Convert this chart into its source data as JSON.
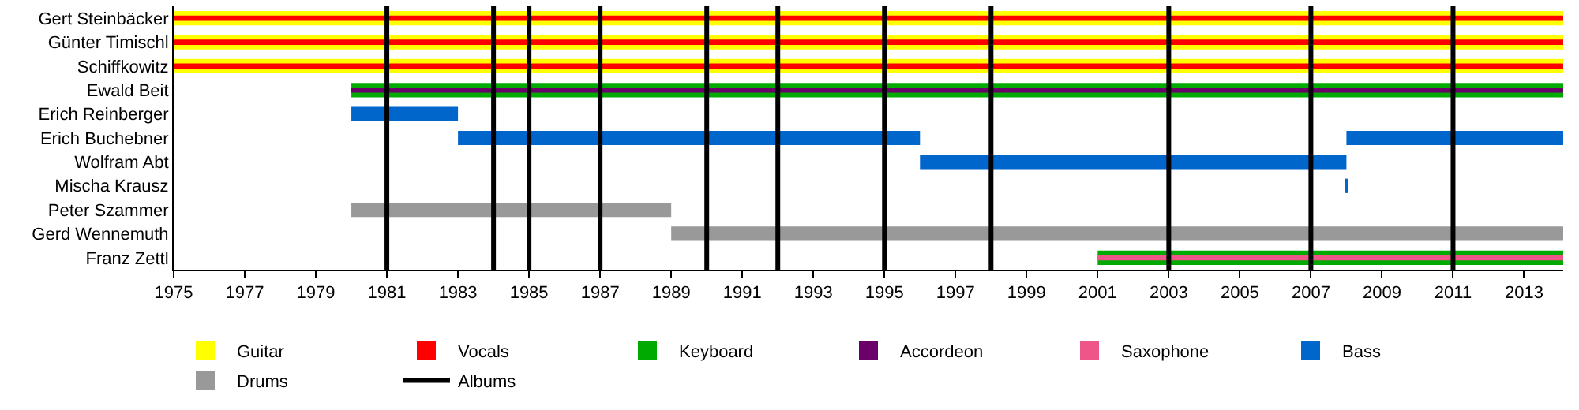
{
  "chart_data": {
    "type": "bar",
    "orientation": "horizontal",
    "legend": "bottom",
    "categories": [
      "Gert Steinbäcker",
      "Günter Timischl",
      "Schiffkowitz",
      "Ewald Beit",
      "Erich Reinberger",
      "Erich Buchebner",
      "Wolfram Abt",
      "Mischa Krausz",
      "Peter Szammer",
      "Gerd Wennemuth",
      "Franz Zettl"
    ],
    "xlim": [
      1975,
      2014.1
    ],
    "xticks": [
      1975,
      1977,
      1979,
      1981,
      1983,
      1985,
      1987,
      1989,
      1991,
      1993,
      1995,
      1997,
      1999,
      2001,
      2003,
      2005,
      2007,
      2009,
      2011,
      2013
    ],
    "series": [
      {
        "name": "Guitar",
        "color": "#ffff00",
        "base": [
          1975,
          1975,
          1975,
          null,
          null,
          null,
          null,
          null,
          null,
          null,
          null
        ],
        "values": [
          39.1,
          39.1,
          39.1,
          null,
          null,
          null,
          null,
          null,
          null,
          null,
          null
        ]
      },
      {
        "name": "Vocals",
        "color": "#ff0000",
        "base": [
          1975,
          1975,
          1975,
          null,
          null,
          null,
          null,
          null,
          null,
          null,
          null
        ],
        "values": [
          39.1,
          39.1,
          39.1,
          null,
          null,
          null,
          null,
          null,
          null,
          null,
          null
        ]
      },
      {
        "name": "Keyboard",
        "color": "#00aa00",
        "base": [
          null,
          null,
          null,
          1980,
          null,
          null,
          null,
          null,
          null,
          null,
          2001
        ],
        "values": [
          null,
          null,
          null,
          34.1,
          null,
          null,
          null,
          null,
          null,
          null,
          13.1
        ]
      },
      {
        "name": "Accordeon",
        "color": "#6a006a",
        "base": [
          null,
          null,
          null,
          1980,
          null,
          null,
          null,
          null,
          null,
          null,
          null
        ],
        "values": [
          null,
          null,
          null,
          34.1,
          null,
          null,
          null,
          null,
          null,
          null,
          null
        ]
      },
      {
        "name": "Saxophone",
        "color": "#ee5588",
        "base": [
          null,
          null,
          null,
          null,
          null,
          null,
          null,
          null,
          null,
          null,
          2001
        ],
        "values": [
          null,
          null,
          null,
          null,
          null,
          null,
          null,
          null,
          null,
          null,
          13.1
        ]
      },
      {
        "name": "Bass",
        "color": "#0066cc",
        "base": [
          null,
          null,
          null,
          null,
          1980,
          1983,
          1996,
          2008,
          null,
          null,
          null
        ],
        "values": [
          null,
          null,
          null,
          null,
          3,
          13,
          12,
          0.05,
          null,
          null,
          null
        ]
      },
      {
        "color": "#0066cc",
        "base": [
          null,
          null,
          null,
          null,
          null,
          2008,
          null,
          null,
          null,
          null,
          null
        ],
        "values": [
          null,
          null,
          null,
          null,
          null,
          6.1,
          null,
          null,
          null,
          null,
          null
        ]
      },
      {
        "name": "Drums",
        "color": "#999999",
        "base": [
          null,
          null,
          null,
          null,
          null,
          null,
          null,
          null,
          1980,
          1989,
          null
        ],
        "values": [
          null,
          null,
          null,
          null,
          null,
          null,
          null,
          null,
          9,
          25.1,
          null
        ]
      }
    ],
    "ref_lines": [
      {
        "axis": "x",
        "value": 1981,
        "label": "Albums",
        "color": "#000000"
      },
      {
        "axis": "x",
        "value": 1984,
        "color": "#000000"
      },
      {
        "axis": "x",
        "value": 1985,
        "color": "#000000"
      },
      {
        "axis": "x",
        "value": 1987,
        "color": "#000000"
      },
      {
        "axis": "x",
        "value": 1990,
        "color": "#000000"
      },
      {
        "axis": "x",
        "value": 1992,
        "color": "#000000"
      },
      {
        "axis": "x",
        "value": 1995,
        "color": "#000000"
      },
      {
        "axis": "x",
        "value": 1998,
        "color": "#000000"
      },
      {
        "axis": "x",
        "value": 2003,
        "color": "#000000"
      },
      {
        "axis": "x",
        "value": 2007,
        "color": "#000000"
      },
      {
        "axis": "x",
        "value": 2011,
        "color": "#000000"
      }
    ]
  }
}
